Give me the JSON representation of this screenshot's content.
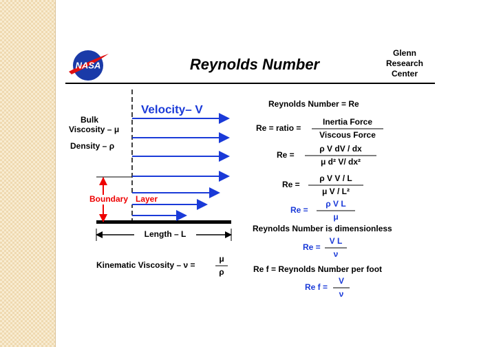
{
  "header": {
    "logo": "NASA",
    "title": "Reynolds  Number",
    "center": [
      "Glenn",
      "Research",
      "Center"
    ]
  },
  "diagram": {
    "velocity": "Velocity– V",
    "bulk": "Bulk",
    "viscosity": "Viscosity – μ",
    "density": "Density – ρ",
    "boundary": "Boundary",
    "layer": "Layer",
    "length": "Length  – L",
    "kinematic": "Kinematic  Viscosity – ν  =",
    "kinematic_num": "μ",
    "kinematic_den": "ρ"
  },
  "equations": [
    {
      "text": "Reynolds  Number =  Re"
    },
    {
      "lhs": "Re =  ratio =",
      "num": "Inertia Force",
      "den": "Viscous Force"
    },
    {
      "lhs": "Re =",
      "num": "ρ V  dV / dx",
      "den": "μ  d² V/ dx²"
    },
    {
      "lhs": "Re =",
      "num": "ρ V  V / L",
      "den": "μ  V / L²"
    },
    {
      "lhs": "Re =",
      "num": "ρ V  L",
      "den": "μ"
    },
    {
      "text": "Reynolds  Number  is  dimensionless"
    },
    {
      "lhs": "Re =",
      "num": "V L",
      "den": "ν"
    },
    {
      "text": "Re f = Reynolds Number  per  foot"
    },
    {
      "lhs": "Re f =",
      "num": "V",
      "den": "ν"
    }
  ]
}
